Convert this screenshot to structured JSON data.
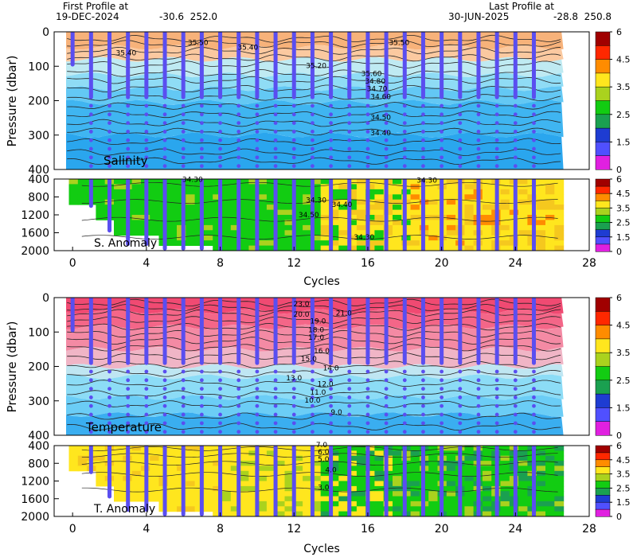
{
  "header": {
    "first_title": "First Profile at",
    "first_date": "19-DEC-2024",
    "first_pos": "-30.6  252.0",
    "last_title": "Last Profile at",
    "last_date": "30-JUN-2025",
    "last_pos": "-28.8  250.8"
  },
  "chart_data": [
    {
      "type": "heatmap",
      "name": "Salinity",
      "ylabel": "Pressure (dbar)",
      "ylim": [
        400,
        0
      ],
      "yticks": [
        "0",
        "100",
        "200",
        "300",
        "400"
      ],
      "contour_labels": [
        "35.50",
        "35.40",
        "35.40",
        "35.50",
        "35.20",
        "35.60",
        "34.80",
        "34.70",
        "34.60",
        "34.50",
        "34.40"
      ],
      "colorbar": {
        "min": 0,
        "max": 6,
        "ticks": [
          "6",
          "4.5",
          "3.5",
          "2.5",
          "1.5",
          "0"
        ]
      }
    },
    {
      "type": "heatmap",
      "name": "S. Anomaly",
      "xlabel": "Cycles",
      "xlim": [
        -1,
        28
      ],
      "xticks": [
        "0",
        "4",
        "8",
        "12",
        "16",
        "20",
        "24",
        "28"
      ],
      "ylim": [
        2000,
        400
      ],
      "yticks": [
        "400",
        "800",
        "1200",
        "1600",
        "2000"
      ],
      "contour_labels": [
        "34.30",
        "34.30",
        "34.40",
        "34.50",
        "34.30",
        "34.30"
      ],
      "colorbar": {
        "min": 0,
        "max": 6,
        "ticks": [
          "6",
          "4.5",
          "3.5",
          "2.5",
          "1.5",
          "0"
        ]
      }
    },
    {
      "type": "heatmap",
      "name": "Temperature",
      "ylabel": "Pressure (dbar)",
      "ylim": [
        400,
        0
      ],
      "yticks": [
        "0",
        "100",
        "200",
        "300",
        "400"
      ],
      "contour_labels": [
        "23.0",
        "21.0",
        "20.0",
        "19.0",
        "18.0",
        "17.0",
        "16.0",
        "15.0",
        "14.0",
        "13.0",
        "12.0",
        "11.0",
        "10.0",
        "9.0"
      ],
      "colorbar": {
        "min": 0,
        "max": 6,
        "ticks": [
          "6",
          "4.5",
          "3.5",
          "2.5",
          "1.5",
          "0"
        ]
      }
    },
    {
      "type": "heatmap",
      "name": "T. Anomaly",
      "xlabel": "Cycles",
      "xlim": [
        -1,
        28
      ],
      "xticks": [
        "0",
        "4",
        "8",
        "12",
        "16",
        "20",
        "24",
        "28"
      ],
      "ylim": [
        2000,
        400
      ],
      "yticks": [
        "400",
        "800",
        "1200",
        "1600",
        "2000"
      ],
      "contour_labels": [
        "7.0",
        "6.0",
        "5.0",
        "4.0",
        "3.0"
      ],
      "colorbar": {
        "min": 0,
        "max": 6,
        "ticks": [
          "6",
          "4.5",
          "3.5",
          "2.5",
          "1.5",
          "0"
        ]
      }
    }
  ],
  "profiles": {
    "cycles": [
      0,
      1,
      2,
      3,
      4,
      5,
      6,
      7,
      8,
      9,
      10,
      11,
      12,
      13,
      14,
      15,
      16,
      17,
      18,
      19,
      20,
      21,
      22,
      23,
      24,
      25
    ],
    "deep_start_cycle": 1
  },
  "colors": {
    "profile_dots": "#5a4ef0",
    "salinity_bands": [
      "#f7b27a",
      "#fbc9a0",
      "#bfeaf2",
      "#8fdcf5",
      "#63c8f4",
      "#3fb5f1",
      "#2aa6ee"
    ],
    "temperature_bands": [
      "#f04a72",
      "#f46688",
      "#f48aa4",
      "#f0b5c6",
      "#bfe6f2",
      "#8cdcf6",
      "#6bcdf6",
      "#3aaef0"
    ],
    "anomaly_scale": [
      "#e020e0",
      "#5050ff",
      "#1e3cd2",
      "#1aa050",
      "#12cc12",
      "#aad21e",
      "#ffe61e",
      "#f5c81e",
      "#ff8c00",
      "#ff2800",
      "#a00000"
    ]
  }
}
